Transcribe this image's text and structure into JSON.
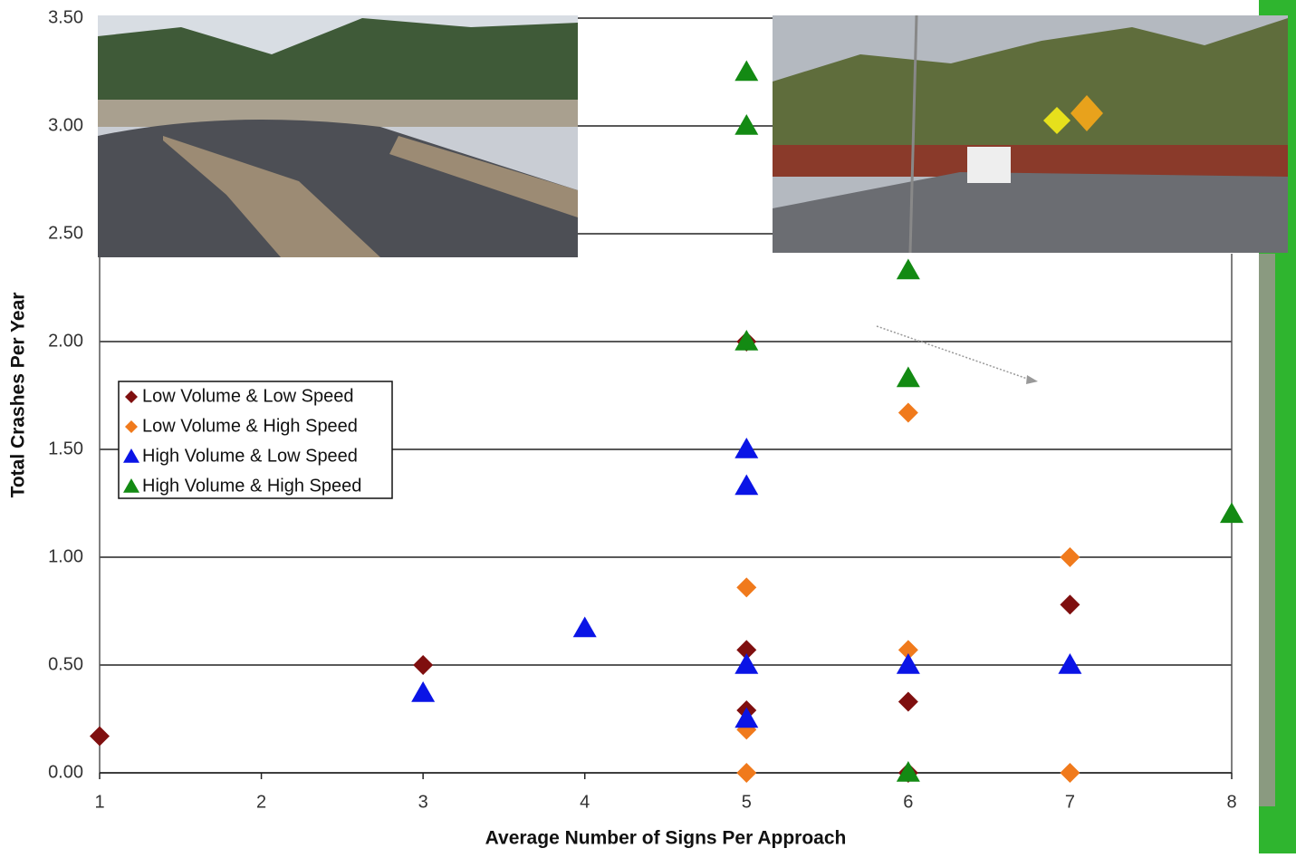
{
  "chart_data": {
    "type": "scatter",
    "x_label": "Average Number of Signs Per Approach",
    "y_label": "Total Crashes Per Year",
    "xlim": [
      1,
      8
    ],
    "xticks": [
      1,
      2,
      3,
      4,
      5,
      6,
      7,
      8
    ],
    "ylim": [
      0,
      3.5
    ],
    "yticks": [
      {
        "value": 0,
        "label": "0.00"
      },
      {
        "value": 0.5,
        "label": "0.50"
      },
      {
        "value": 1,
        "label": "1.00"
      },
      {
        "value": 1.5,
        "label": "1.50"
      },
      {
        "value": 2,
        "label": "2.00"
      },
      {
        "value": 2.5,
        "label": "2.50"
      },
      {
        "value": 3,
        "label": "3.00"
      },
      {
        "value": 3.5,
        "label": "3.50"
      }
    ],
    "grid": true,
    "legend": "left",
    "series": [
      {
        "name": "Low Volume & Low Speed",
        "color": "#7f0f0f",
        "marker": "diamond",
        "x": [
          1,
          3,
          5,
          5,
          5,
          6,
          6,
          7
        ],
        "values": [
          0.17,
          0.5,
          2.0,
          0.57,
          0.29,
          0.33,
          0.0,
          0.78
        ]
      },
      {
        "name": "Low Volume & High Speed",
        "color": "#f07a1c",
        "marker": "diamond",
        "x": [
          5,
          5,
          5,
          6,
          6,
          7,
          7
        ],
        "values": [
          0.86,
          0.2,
          0.0,
          1.67,
          0.57,
          1.0,
          0.0
        ]
      },
      {
        "name": "High Volume & Low Speed",
        "color": "#0a14e6",
        "marker": "triangle",
        "x": [
          3,
          4,
          5,
          5,
          5,
          5,
          6,
          7
        ],
        "values": [
          0.37,
          0.67,
          1.5,
          1.33,
          0.5,
          0.25,
          0.5,
          0.5
        ]
      },
      {
        "name": "High Volume & High Speed",
        "color": "#138a13",
        "marker": "triangle",
        "x": [
          5,
          5,
          5,
          6,
          6,
          6,
          8
        ],
        "values": [
          3.25,
          3.0,
          2.0,
          2.33,
          1.83,
          0.0,
          1.2
        ]
      }
    ]
  }
}
